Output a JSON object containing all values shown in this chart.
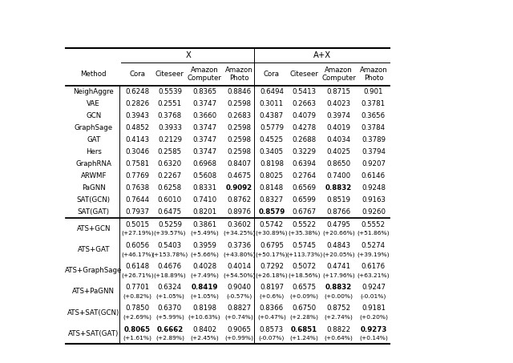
{
  "col_headers": [
    "Method",
    "Cora",
    "Citeseer",
    "Amazon\nComputer",
    "Amazon\nPhoto",
    "Cora",
    "Citeseer",
    "Amazon\nComputer",
    "Amazon\nPhoto"
  ],
  "baseline_rows": [
    [
      "NeighAggre",
      "0.6248",
      "0.5539",
      "0.8365",
      "0.8846",
      "0.6494",
      "0.5413",
      "0.8715",
      "0.901"
    ],
    [
      "VAE",
      "0.2826",
      "0.2551",
      "0.3747",
      "0.2598",
      "0.3011",
      "0.2663",
      "0.4023",
      "0.3781"
    ],
    [
      "GCN",
      "0.3943",
      "0.3768",
      "0.3660",
      "0.2683",
      "0.4387",
      "0.4079",
      "0.3974",
      "0.3656"
    ],
    [
      "GraphSage",
      "0.4852",
      "0.3933",
      "0.3747",
      "0.2598",
      "0.5779",
      "0.4278",
      "0.4019",
      "0.3784"
    ],
    [
      "GAT",
      "0.4143",
      "0.2129",
      "0.3747",
      "0.2598",
      "0.4525",
      "0.2688",
      "0.4034",
      "0.3789"
    ],
    [
      "Hers",
      "0.3046",
      "0.2585",
      "0.3747",
      "0.2598",
      "0.3405",
      "0.3229",
      "0.4025",
      "0.3794"
    ],
    [
      "GraphRNA",
      "0.7581",
      "0.6320",
      "0.6968",
      "0.8407",
      "0.8198",
      "0.6394",
      "0.8650",
      "0.9207"
    ],
    [
      "ARWMF",
      "0.7769",
      "0.2267",
      "0.5608",
      "0.4675",
      "0.8025",
      "0.2764",
      "0.7400",
      "0.6146"
    ],
    [
      "PaGNN",
      "0.7638",
      "0.6258",
      "0.8331",
      "**0.9092**",
      "0.8148",
      "0.6569",
      "**0.8832**",
      "0.9248"
    ],
    [
      "SAT(GCN)",
      "0.7644",
      "0.6010",
      "0.7410",
      "0.8762",
      "0.8327",
      "0.6599",
      "0.8519",
      "0.9163"
    ],
    [
      "SAT(GAT)",
      "0.7937",
      "0.6475",
      "0.8201",
      "0.8976",
      "**0.8579**",
      "0.6767",
      "0.8766",
      "0.9260"
    ]
  ],
  "ats_rows": [
    [
      "ATS+GCN",
      "0.5015",
      "0.5259",
      "0.3861",
      "0.3602",
      "(+27.19%)",
      "(+39.57%)",
      "(+5.49%)",
      "(+34.25%)",
      "0.5742",
      "0.5522",
      "0.4795",
      "0.5552",
      "(+30.89%)",
      "(+35.38%)",
      "(+20.66%)",
      "(+51.86%)"
    ],
    [
      "ATS+GAT",
      "0.6056",
      "0.5403",
      "0.3959",
      "0.3736",
      "(+46.17%)",
      "(+153.78%)",
      "(+5.66%)",
      "(+43.80%)",
      "0.6795",
      "0.5745",
      "0.4843",
      "0.5274",
      "(+50.17%)",
      "(+113.73%)",
      "(+20.05%)",
      "(+39.19%)"
    ],
    [
      "ATS+GraphSage",
      "0.6148",
      "0.4676",
      "0.4028",
      "0.4014",
      "(+26.71%)",
      "(+18.89%)",
      "(+7.49%)",
      "(+54.50%)",
      "0.7292",
      "0.5072",
      "0.4741",
      "0.6176",
      "(+26.18%)",
      "(+18.56%)",
      "(+17.96%)",
      "(+63.21%)"
    ],
    [
      "ATS+PaGNN",
      "0.7701",
      "0.6324",
      "**0.8419**",
      "0.9040",
      "(+0.82%)",
      "(+1.05%)",
      "(+1.05%)",
      "(-0.57%)",
      "0.8197",
      "0.6575",
      "**0.8832**",
      "0.9247",
      "(+0.6%)",
      "(+0.09%)",
      "(+0.00%)",
      "(-0.01%)"
    ],
    [
      "ATS+SAT(GCN)",
      "0.7850",
      "0.6370",
      "0.8198",
      "0.8827",
      "(+2.69%)",
      "(+5.99%)",
      "(+10.63%)",
      "(+0.74%)",
      "0.8366",
      "0.6750",
      "0.8752",
      "0.9181",
      "(+0.47%)",
      "(+2.28%)",
      "(+2.74%)",
      "(+0.20%)"
    ],
    [
      "ATS+SAT(GAT)",
      "**0.8065**",
      "**0.6662**",
      "0.8402",
      "0.9065",
      "(+1.61%)",
      "(+2.89%)",
      "(+2.45%)",
      "(+0.99%)",
      "0.8573",
      "**0.6851**",
      "0.8822",
      "**0.9273**",
      "(-0.07%)",
      "(+1.24%)",
      "(+0.64%)",
      "(+0.14%)"
    ]
  ]
}
